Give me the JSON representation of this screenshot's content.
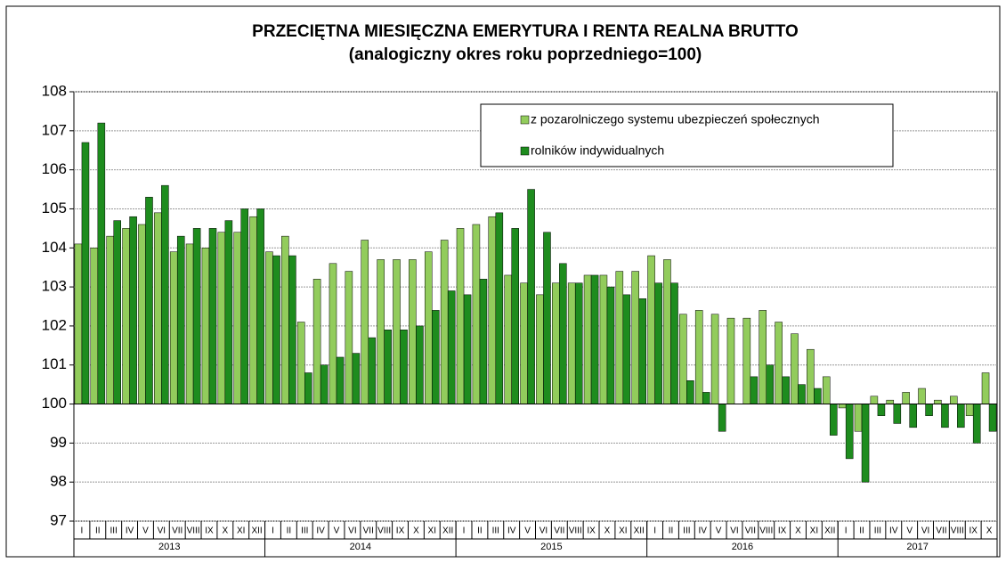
{
  "chart_data": {
    "type": "bar",
    "title": "PRZECIĘTNA MIESIĘCZNA EMERYTURA I RENTA REALNA BRUTTO",
    "subtitle": "(analogiczny okres roku poprzedniego=100)",
    "groups": [
      {
        "label": "2013",
        "months": [
          "I",
          "II",
          "III",
          "IV",
          "V",
          "VI",
          "VII",
          "VIII",
          "IX",
          "X",
          "XI",
          "XII"
        ]
      },
      {
        "label": "2014",
        "months": [
          "I",
          "II",
          "III",
          "IV",
          "V",
          "VI",
          "VII",
          "VIII",
          "IX",
          "X",
          "XI",
          "XII"
        ]
      },
      {
        "label": "2015",
        "months": [
          "I",
          "II",
          "III",
          "IV",
          "V",
          "VI",
          "VII",
          "VIII",
          "IX",
          "X",
          "XI",
          "XII"
        ]
      },
      {
        "label": "2016",
        "months": [
          "I",
          "II",
          "III",
          "IV",
          "V",
          "VI",
          "VII",
          "VIII",
          "IX",
          "X",
          "XI",
          "XII"
        ]
      },
      {
        "label": "2017",
        "months": [
          "I",
          "II",
          "III",
          "IV",
          "V",
          "VI",
          "VII",
          "VIII",
          "IX",
          "X"
        ]
      }
    ],
    "series": [
      {
        "name": "z pozarolniczego systemu ubezpieczeń społecznych",
        "color": "#92cc5c",
        "values": [
          104.1,
          104.0,
          104.3,
          104.5,
          104.6,
          104.9,
          103.9,
          104.1,
          104.0,
          104.4,
          104.4,
          104.8,
          103.9,
          104.3,
          102.1,
          103.2,
          103.6,
          103.4,
          104.2,
          103.7,
          103.7,
          103.7,
          103.9,
          104.2,
          104.5,
          104.6,
          104.8,
          103.3,
          103.1,
          102.8,
          103.1,
          103.1,
          103.3,
          103.3,
          103.4,
          103.4,
          103.8,
          103.7,
          102.3,
          102.4,
          102.3,
          102.2,
          102.2,
          102.4,
          102.1,
          101.8,
          101.4,
          100.7,
          99.9,
          99.3,
          100.2,
          100.1,
          100.3,
          100.4,
          100.1,
          100.2,
          99.7,
          100.8
        ]
      },
      {
        "name": "rolników indywidualnych",
        "color": "#1e8c1e",
        "values": [
          106.7,
          107.2,
          104.7,
          104.8,
          105.3,
          105.6,
          104.3,
          104.5,
          104.5,
          104.7,
          105.0,
          105.0,
          103.8,
          103.8,
          100.8,
          101.0,
          101.2,
          101.3,
          101.7,
          101.9,
          101.9,
          102.0,
          102.4,
          102.9,
          102.8,
          103.2,
          104.9,
          104.5,
          105.5,
          104.4,
          103.6,
          103.1,
          103.3,
          103.0,
          102.8,
          102.7,
          103.1,
          103.1,
          100.6,
          100.3,
          99.3,
          100.0,
          100.7,
          101.0,
          100.7,
          100.5,
          100.4,
          99.2,
          98.6,
          98.0,
          99.7,
          99.5,
          99.4,
          99.7,
          99.4,
          99.4,
          99.0,
          99.3
        ]
      }
    ],
    "ylim": [
      97,
      108
    ],
    "yticks": [
      97,
      98,
      99,
      100,
      101,
      102,
      103,
      104,
      105,
      106,
      107,
      108
    ],
    "baseline": 100,
    "grid": true,
    "legend": "top-right"
  }
}
